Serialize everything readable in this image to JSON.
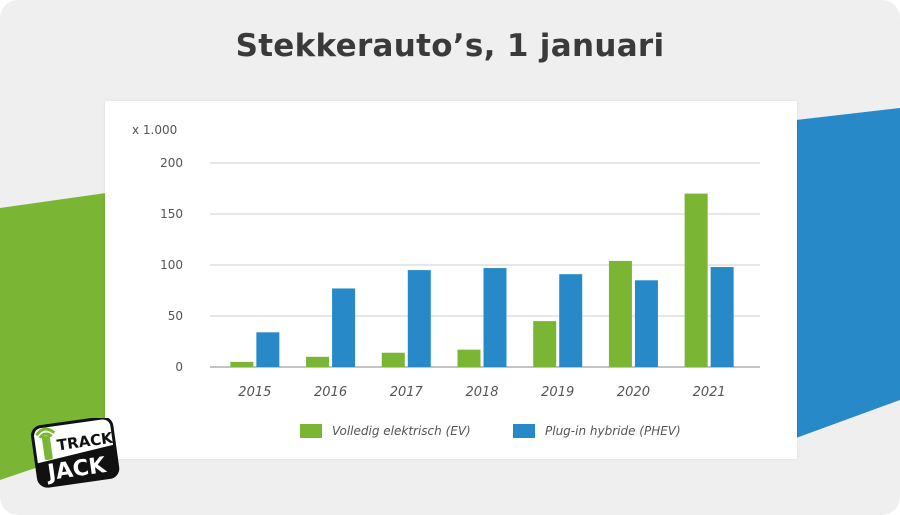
{
  "title": "Stekkerauto’s, 1 januari",
  "logo_text": "TRACK JACK",
  "colors": {
    "background": "#efefef",
    "green_band": "#7ab534",
    "blue_band": "#2889c9",
    "title": "#3a3a3a"
  },
  "chart_data": {
    "type": "bar",
    "unit_label": "x 1.000",
    "categories": [
      "2015",
      "2016",
      "2017",
      "2018",
      "2019",
      "2020",
      "2021"
    ],
    "series": [
      {
        "name": "Volledig elektrisch (EV)",
        "color": "#7ab534",
        "values": [
          5,
          10,
          14,
          17,
          45,
          104,
          170
        ]
      },
      {
        "name": "Plug-in hybride (PHEV)",
        "color": "#2889c9",
        "values": [
          34,
          77,
          95,
          97,
          91,
          85,
          98
        ]
      }
    ],
    "y_ticks": [
      0,
      50,
      100,
      150,
      200
    ],
    "ylim": [
      0,
      200
    ],
    "grid": true,
    "legend_position": "bottom"
  }
}
